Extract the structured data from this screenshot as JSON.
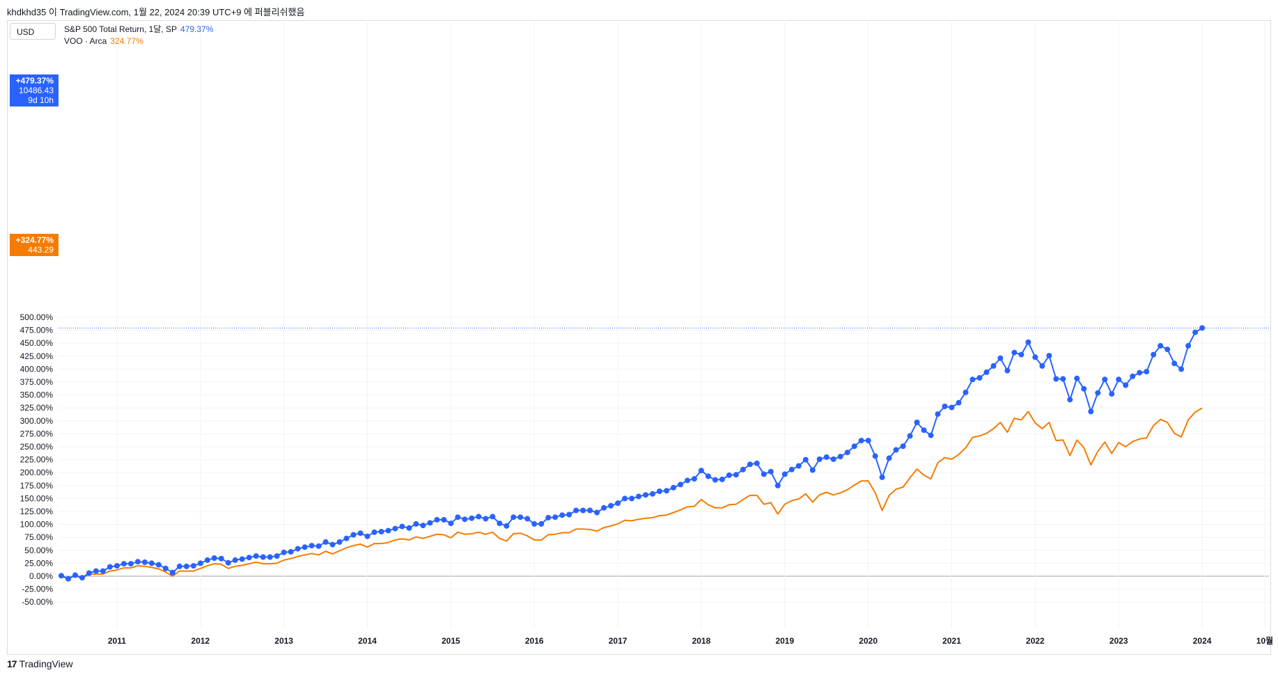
{
  "header": {
    "text": "khdkhd35 이 TradingView.com, 1월 22, 2024 20:39 UTC+9 에 퍼블리쉬했음"
  },
  "toolbar": {
    "currency": "USD"
  },
  "legend": [
    {
      "label": "S&P 500 Total Return, 1달, SP",
      "value": "479.37%",
      "color": "#2962ff"
    },
    {
      "label": "VOO · Arca",
      "value": "324.77%",
      "color": "#f57c00"
    }
  ],
  "price_tags": {
    "blue": {
      "pct": "+479.37%",
      "price": "10486.43",
      "countdown": "9d 10h"
    },
    "orange": {
      "pct": "+324.77%",
      "price": "443.29"
    }
  },
  "footer": {
    "brand": "TradingView",
    "logo_mark": "17"
  },
  "colors": {
    "blue": "#2962ff",
    "orange": "#f57c00",
    "grid": "#f0f3fa",
    "zero": "#b2b5be"
  },
  "chart_data": {
    "type": "line",
    "ylabel": "",
    "xlabel": "",
    "ylim": [
      -50,
      500
    ],
    "y_ticks": [
      -50,
      -25,
      0,
      25,
      50,
      75,
      100,
      125,
      150,
      175,
      200,
      225,
      250,
      275,
      300,
      325,
      350,
      375,
      400,
      425,
      450,
      475,
      500
    ],
    "x_ticks": [
      "2011",
      "2012",
      "2013",
      "2014",
      "2015",
      "2016",
      "2017",
      "2018",
      "2019",
      "2020",
      "2021",
      "2022",
      "2023",
      "2024",
      "10월"
    ],
    "x_tick_years": [
      2011,
      2012,
      2013,
      2014,
      2015,
      2016,
      2017,
      2018,
      2019,
      2020,
      2021,
      2022,
      2023,
      2024,
      2024.75
    ],
    "x_range": [
      2010.3,
      2024.8
    ],
    "x_start": "2010-05",
    "grid": true,
    "series": [
      {
        "name": "S&P 500 Total Return, 1달, SP",
        "markers": true,
        "values": [
          1,
          -5,
          2,
          -3,
          6,
          10,
          10,
          18,
          20,
          24,
          24,
          28,
          27,
          25,
          22,
          15,
          7,
          19,
          19,
          20,
          25,
          31,
          35,
          34,
          26,
          31,
          33,
          36,
          39,
          37,
          37,
          39,
          46,
          47,
          53,
          56,
          59,
          58,
          66,
          61,
          66,
          73,
          80,
          83,
          77,
          85,
          86,
          88,
          92,
          96,
          93,
          101,
          98,
          103,
          109,
          109,
          102,
          114,
          110,
          112,
          115,
          111,
          115,
          102,
          97,
          114,
          114,
          111,
          101,
          101,
          113,
          114,
          118,
          119,
          127,
          127,
          127,
          123,
          132,
          136,
          141,
          150,
          150,
          154,
          157,
          159,
          164,
          165,
          171,
          177,
          185,
          188,
          204,
          193,
          186,
          187,
          195,
          196,
          206,
          216,
          218,
          197,
          202,
          175,
          197,
          206,
          213,
          225,
          205,
          226,
          230,
          226,
          231,
          239,
          251,
          262,
          262,
          232,
          191,
          228,
          244,
          251,
          271,
          297,
          282,
          272,
          313,
          328,
          326,
          335,
          355,
          380,
          383,
          394,
          406,
          421,
          397,
          432,
          428,
          452,
          423,
          406,
          426,
          381,
          381,
          341,
          382,
          362,
          318,
          354,
          380,
          352,
          380,
          369,
          386,
          393,
          395,
          428,
          445,
          438,
          411,
          400,
          445,
          471,
          479.37
        ]
      },
      {
        "name": "VOO · Arca",
        "markers": false,
        "values": [
          0,
          -5,
          1,
          -4,
          4,
          4,
          4,
          10,
          12,
          16,
          16,
          20,
          19,
          17,
          14,
          8,
          0,
          10,
          10,
          10,
          15,
          20,
          24,
          23,
          15,
          19,
          21,
          24,
          27,
          24,
          24,
          25,
          31,
          34,
          38,
          41,
          44,
          41,
          48,
          43,
          49,
          55,
          59,
          62,
          56,
          63,
          63,
          65,
          70,
          72,
          70,
          76,
          73,
          77,
          81,
          80,
          74,
          85,
          81,
          82,
          85,
          81,
          85,
          73,
          68,
          82,
          83,
          78,
          70,
          70,
          80,
          81,
          84,
          84,
          91,
          91,
          90,
          87,
          94,
          97,
          101,
          108,
          107,
          110,
          112,
          113,
          117,
          118,
          123,
          128,
          134,
          135,
          148,
          138,
          132,
          132,
          138,
          139,
          148,
          156,
          156,
          139,
          142,
          120,
          139,
          146,
          149,
          159,
          143,
          157,
          162,
          157,
          161,
          167,
          176,
          184,
          184,
          161,
          127,
          156,
          168,
          172,
          190,
          207,
          195,
          188,
          219,
          229,
          226,
          235,
          248,
          268,
          271,
          276,
          285,
          297,
          278,
          305,
          302,
          318,
          296,
          285,
          297,
          262,
          263,
          233,
          263,
          248,
          215,
          241,
          259,
          237,
          258,
          250,
          260,
          265,
          267,
          291,
          303,
          297,
          276,
          269,
          302,
          317,
          324.77
        ]
      }
    ],
    "last_value_line": 479.37
  }
}
